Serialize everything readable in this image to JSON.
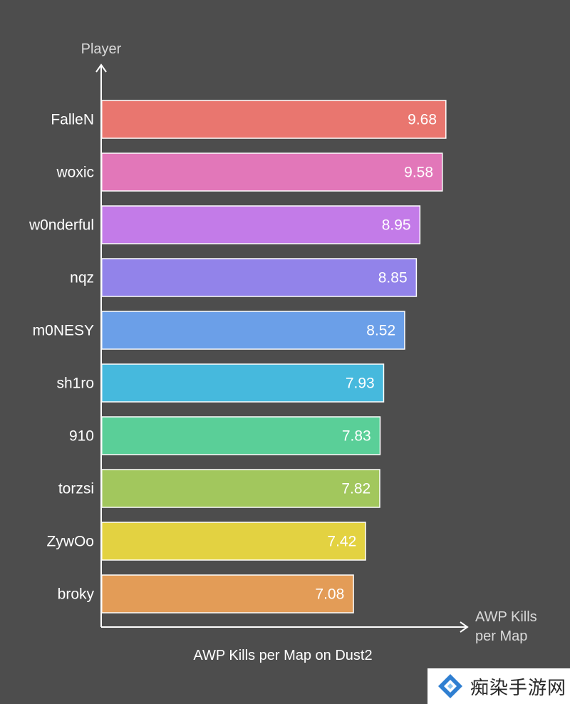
{
  "chart_data": {
    "type": "bar",
    "orientation": "horizontal",
    "title": "AWP Kills per Map on Dust2",
    "xlabel": "AWP Kills per Map",
    "ylabel": "Player",
    "xlim": [
      0,
      10.2
    ],
    "grid": false,
    "categories": [
      "FalleN",
      "woxic",
      "w0nderful",
      "nqz",
      "m0NESY",
      "sh1ro",
      "910",
      "torzsi",
      "ZywOo",
      "broky"
    ],
    "values": [
      9.68,
      9.58,
      8.95,
      8.85,
      8.52,
      7.93,
      7.83,
      7.82,
      7.42,
      7.08
    ],
    "colors": [
      "#e9766f",
      "#e277b9",
      "#c37be8",
      "#9283ea",
      "#6b9fe8",
      "#46b9dd",
      "#5acf98",
      "#a2c75d",
      "#e3d241",
      "#e39c57"
    ]
  },
  "watermark": {
    "text": "痴染手游网",
    "icon": "diamond-logo-icon"
  }
}
